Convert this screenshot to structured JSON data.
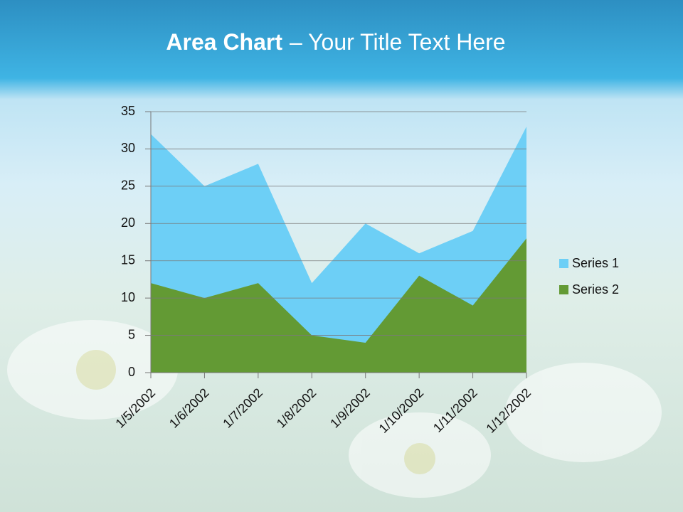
{
  "chart_data": {
    "type": "area",
    "title_parts": [
      "Area Chart",
      "– Your Title Text Here"
    ],
    "categories": [
      "1/5/2002",
      "1/6/2002",
      "1/7/2002",
      "1/8/2002",
      "1/9/2002",
      "1/10/2002",
      "1/11/2002",
      "1/12/2002"
    ],
    "series": [
      {
        "name": "Series 1",
        "color": "#6dcff6",
        "values": [
          32,
          25,
          28,
          12,
          20,
          16,
          19,
          33
        ]
      },
      {
        "name": "Series 2",
        "color": "#639a34",
        "values": [
          12,
          10,
          12,
          5,
          4,
          13,
          9,
          18
        ]
      }
    ],
    "ylim": [
      0,
      35
    ],
    "yticks": [
      0,
      5,
      10,
      15,
      20,
      25,
      30,
      35
    ],
    "grid": true,
    "legend": "right"
  }
}
